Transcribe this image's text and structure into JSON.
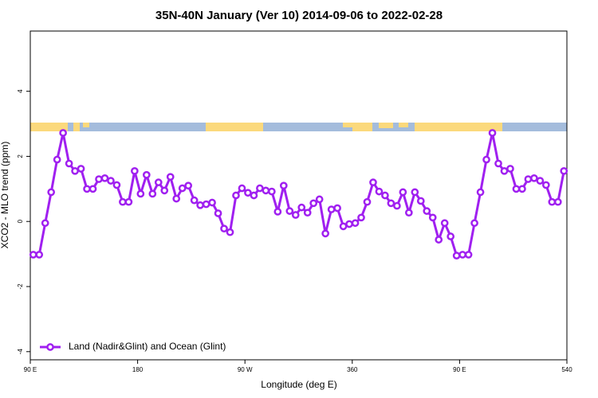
{
  "chart_data": {
    "type": "line",
    "title": "35N-40N January (Ver 10)   2014-09-06 to 2022-02-28",
    "xlabel": "Longitude (deg E)",
    "ylabel": "XCO2 - MLO trend (ppm)",
    "xlim": [
      90,
      540
    ],
    "ylim": [
      -4.25,
      5.85
    ],
    "xticks": [
      {
        "value": 90,
        "label": "90 E"
      },
      180,
      {
        "value": 270,
        "label": "90 W"
      },
      360,
      {
        "value": 450,
        "label": "90 E"
      },
      540
    ],
    "yticks": [
      -4,
      -2,
      0,
      2,
      4
    ],
    "legend": "bottom-left",
    "grid": false,
    "x": [
      92.5,
      97.5,
      102.5,
      107.5,
      112.5,
      117.5,
      122.5,
      127.5,
      132.5,
      137.5,
      142.5,
      147.5,
      152.5,
      157.5,
      162.5,
      167.5,
      172.5,
      177.5,
      182.5,
      187.5,
      192.5,
      197.5,
      202.5,
      207.5,
      212.5,
      217.5,
      222.5,
      227.5,
      232.5,
      237.5,
      242.5,
      247.5,
      252.5,
      257.5,
      262.5,
      267.5,
      272.5,
      277.5,
      282.5,
      287.5,
      292.5,
      297.5,
      302.5,
      307.5,
      312.5,
      317.5,
      322.5,
      327.5,
      332.5,
      337.5,
      342.5,
      347.5,
      352.5,
      357.5,
      362.5,
      367.5,
      372.5,
      377.5,
      382.5,
      387.5,
      392.5,
      397.5,
      402.5,
      407.5,
      412.5,
      417.5,
      422.5,
      427.5,
      432.5,
      437.5,
      442.5,
      447.5,
      452.5,
      457.5,
      462.5,
      467.5,
      472.5,
      477.5,
      482.5,
      487.5,
      492.5,
      497.5,
      502.5,
      507.5,
      512.5,
      517.5,
      522.5,
      527.5,
      532.5,
      537.5
    ],
    "series": [
      {
        "name": "Land (Nadir&Glint) and Ocean (Glint)",
        "color": "#a020f0",
        "values": [
          -1.02,
          -1.02,
          -0.05,
          0.9,
          1.9,
          2.72,
          1.78,
          1.55,
          1.62,
          1.0,
          1.0,
          1.3,
          1.33,
          1.25,
          1.12,
          0.6,
          0.6,
          1.55,
          0.85,
          1.43,
          0.85,
          1.2,
          0.95,
          1.37,
          0.7,
          1.02,
          1.1,
          0.65,
          0.5,
          0.53,
          0.58,
          0.25,
          -0.22,
          -0.33,
          0.8,
          1.02,
          0.88,
          0.8,
          1.02,
          0.95,
          0.92,
          0.3,
          1.1,
          0.32,
          0.2,
          0.43,
          0.27,
          0.56,
          0.68,
          -0.37,
          0.37,
          0.41,
          -0.15,
          -0.08,
          -0.05,
          0.12,
          0.6,
          1.2,
          0.92,
          0.8,
          0.56,
          0.48,
          0.9,
          0.27,
          0.9,
          0.63,
          0.32,
          0.12,
          -0.56,
          -0.05,
          -0.46,
          -1.05,
          -1.02,
          -1.02,
          -0.05,
          0.9,
          1.9,
          2.72,
          1.78,
          1.55,
          1.62,
          1.0,
          1.0,
          1.3,
          1.33,
          1.25,
          1.12,
          0.6,
          0.6,
          1.55
        ]
      }
    ]
  }
}
